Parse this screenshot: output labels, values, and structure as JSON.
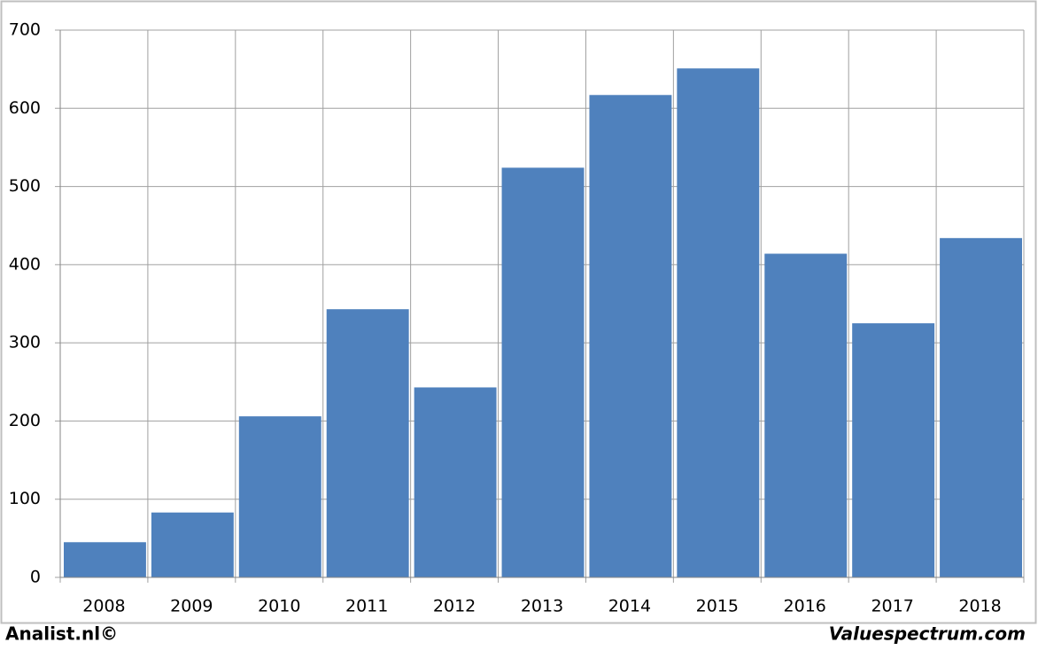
{
  "chart_data": {
    "type": "bar",
    "categories": [
      "2008",
      "2009",
      "2010",
      "2011",
      "2012",
      "2013",
      "2014",
      "2015",
      "2016",
      "2017",
      "2018"
    ],
    "values": [
      45,
      83,
      206,
      343,
      243,
      524,
      617,
      651,
      414,
      325,
      434
    ],
    "color": "#4f81bd",
    "ylim": [
      0,
      700
    ],
    "yticks": [
      0,
      100,
      200,
      300,
      400,
      500,
      600,
      700
    ],
    "grid": true
  },
  "footer": {
    "left": "Analist.nl©",
    "right": "Valuespectrum.com"
  }
}
